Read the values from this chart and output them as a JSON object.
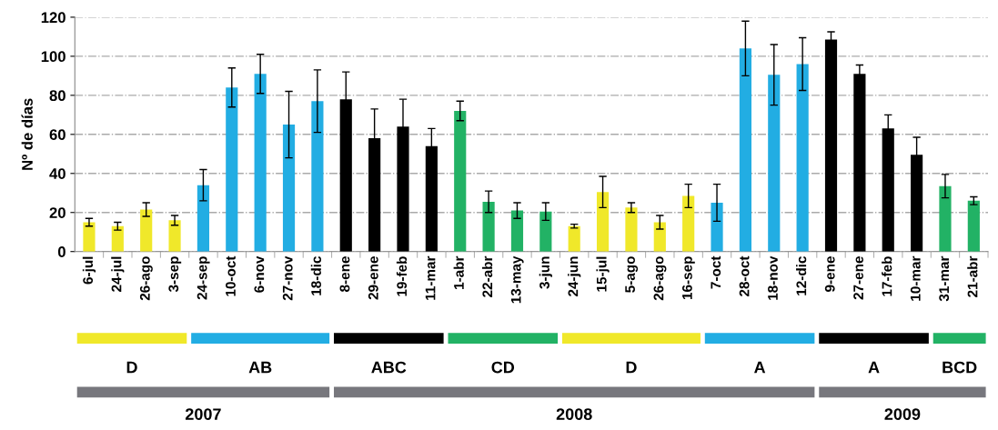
{
  "chart_data": {
    "type": "bar",
    "ylabel": "Nº de días",
    "categories": [
      "6-jul",
      "24-jul",
      "26-ago",
      "3-sep",
      "24-sep",
      "10-oct",
      "6-nov",
      "27-nov",
      "18-dic",
      "8-ene",
      "29-ene",
      "19-feb",
      "11-mar",
      "1-abr",
      "22-abr",
      "13-may",
      "3-jun",
      "24-jun",
      "15-jul",
      "5-ago",
      "26-ago",
      "16-sep",
      "7-oct",
      "28-oct",
      "18-nov",
      "12-dic",
      "9-ene",
      "27-ene",
      "17-feb",
      "10-mar",
      "31-mar",
      "21-abr"
    ],
    "values": [
      15,
      13,
      21.5,
      16,
      34,
      84,
      91,
      65,
      77,
      78,
      58,
      64,
      54,
      72,
      25.5,
      21,
      20.5,
      13,
      30.5,
      22.5,
      15,
      28.5,
      25,
      104,
      90.5,
      96,
      108.5,
      91,
      63,
      49.5,
      33.5,
      26
    ],
    "errors": [
      2,
      2,
      3.5,
      2.5,
      8,
      10,
      10,
      17,
      16,
      14,
      15,
      14,
      9,
      5,
      5.5,
      4,
      4.5,
      1,
      8,
      2.5,
      3.5,
      6,
      9.5,
      14,
      15.5,
      13.5,
      4,
      4.5,
      7,
      9,
      6,
      2
    ],
    "colors": [
      "#f0e82a",
      "#f0e82a",
      "#f0e82a",
      "#f0e82a",
      "#22ade3",
      "#22ade3",
      "#22ade3",
      "#22ade3",
      "#22ade3",
      "#000000",
      "#000000",
      "#000000",
      "#000000",
      "#22b265",
      "#22b265",
      "#22b265",
      "#22b265",
      "#f0e82a",
      "#f0e82a",
      "#f0e82a",
      "#f0e82a",
      "#f0e82a",
      "#22ade3",
      "#22ade3",
      "#22ade3",
      "#22ade3",
      "#000000",
      "#000000",
      "#000000",
      "#000000",
      "#22b265",
      "#22b265"
    ],
    "ylim": [
      0,
      120
    ],
    "yticks": [
      0,
      20,
      40,
      60,
      80,
      100,
      120
    ],
    "grid": "y",
    "annotations": [
      "D",
      "AB",
      "ABC",
      "CD",
      "D",
      "A",
      "A",
      "BCD",
      "2007",
      "2008",
      "2009"
    ]
  }
}
